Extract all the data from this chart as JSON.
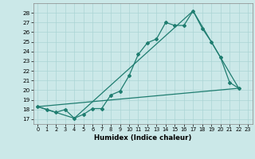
{
  "background_color": "#cbe8e8",
  "grid_color": "#aad4d4",
  "line_color": "#1f7d70",
  "xlabel": "Humidex (Indice chaleur)",
  "xlim": [
    -0.5,
    23.5
  ],
  "ylim": [
    16.5,
    29.0
  ],
  "xticks": [
    0,
    1,
    2,
    3,
    4,
    5,
    6,
    7,
    8,
    9,
    10,
    11,
    12,
    13,
    14,
    15,
    16,
    17,
    18,
    19,
    20,
    21,
    22,
    23
  ],
  "yticks": [
    17,
    18,
    19,
    20,
    21,
    22,
    23,
    24,
    25,
    26,
    27,
    28
  ],
  "line1_x": [
    0,
    1,
    2,
    3,
    4,
    5,
    6,
    7,
    8,
    9,
    10,
    11,
    12,
    13,
    14,
    15,
    16,
    17,
    18,
    19,
    20,
    21,
    22
  ],
  "line1_y": [
    18.3,
    18.0,
    17.7,
    18.0,
    17.1,
    17.5,
    18.1,
    18.1,
    19.5,
    19.9,
    21.5,
    23.7,
    24.9,
    25.3,
    27.0,
    26.7,
    26.7,
    28.2,
    26.4,
    25.0,
    23.4,
    20.8,
    20.2
  ],
  "line2_x": [
    0,
    4,
    17,
    19,
    22
  ],
  "line2_y": [
    18.3,
    17.1,
    28.2,
    25.0,
    20.2
  ],
  "line3_x": [
    0,
    22
  ],
  "line3_y": [
    18.3,
    20.2
  ]
}
